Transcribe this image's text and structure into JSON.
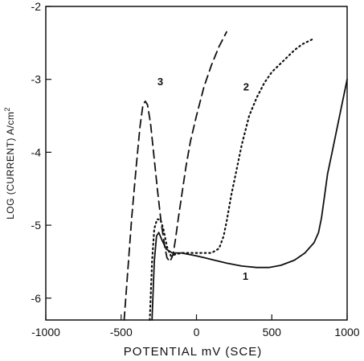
{
  "chart_data": {
    "type": "line",
    "xlabel": "POTENTIAL mV (SCE)",
    "ylabel": "LOG (CURRENT) A/cm",
    "ylabel_sup": "2",
    "xlim": [
      -1000,
      1000
    ],
    "ylim": [
      -6.3,
      -2
    ],
    "x_ticks": [
      -1000,
      -500,
      0,
      500,
      1000
    ],
    "x_tick_labels": [
      "-1000",
      "-500",
      "0",
      "500",
      "1000"
    ],
    "y_ticks": [
      -6,
      -5,
      -4,
      -3,
      -2
    ],
    "y_tick_labels": [
      "-6",
      "-5",
      "-4",
      "-3",
      "-2"
    ],
    "grid": false,
    "series": [
      {
        "label": "1",
        "style": "solid",
        "label_pos": [
          325,
          -5.75
        ],
        "points": [
          [
            -295,
            -6.3
          ],
          [
            -280,
            -5.5
          ],
          [
            -265,
            -5.15
          ],
          [
            -250,
            -5.1
          ],
          [
            -230,
            -5.2
          ],
          [
            -200,
            -5.33
          ],
          [
            -160,
            -5.38
          ],
          [
            -100,
            -5.38
          ],
          [
            0,
            -5.42
          ],
          [
            100,
            -5.47
          ],
          [
            200,
            -5.52
          ],
          [
            300,
            -5.56
          ],
          [
            400,
            -5.58
          ],
          [
            480,
            -5.58
          ],
          [
            560,
            -5.55
          ],
          [
            650,
            -5.48
          ],
          [
            720,
            -5.38
          ],
          [
            780,
            -5.24
          ],
          [
            810,
            -5.1
          ],
          [
            830,
            -4.9
          ],
          [
            850,
            -4.6
          ],
          [
            870,
            -4.3
          ],
          [
            900,
            -4.0
          ],
          [
            930,
            -3.7
          ],
          [
            960,
            -3.4
          ],
          [
            985,
            -3.15
          ],
          [
            1000,
            -3.0
          ]
        ]
      },
      {
        "label": "2",
        "style": "dotted",
        "label_pos": [
          330,
          -3.15
        ],
        "points": [
          [
            -310,
            -6.3
          ],
          [
            -295,
            -5.5
          ],
          [
            -280,
            -5.05
          ],
          [
            -262,
            -4.92
          ],
          [
            -240,
            -4.92
          ],
          [
            -220,
            -5.05
          ],
          [
            -195,
            -5.3
          ],
          [
            -170,
            -5.42
          ],
          [
            -140,
            -5.4
          ],
          [
            -100,
            -5.38
          ],
          [
            0,
            -5.38
          ],
          [
            100,
            -5.38
          ],
          [
            150,
            -5.32
          ],
          [
            180,
            -5.15
          ],
          [
            200,
            -4.95
          ],
          [
            230,
            -4.6
          ],
          [
            260,
            -4.3
          ],
          [
            300,
            -3.9
          ],
          [
            350,
            -3.5
          ],
          [
            400,
            -3.25
          ],
          [
            450,
            -3.05
          ],
          [
            500,
            -2.9
          ],
          [
            550,
            -2.8
          ],
          [
            600,
            -2.7
          ],
          [
            650,
            -2.6
          ],
          [
            700,
            -2.52
          ],
          [
            770,
            -2.45
          ]
        ]
      },
      {
        "label": "3",
        "style": "dashed",
        "label_pos": [
          -240,
          -3.08
        ],
        "points": [
          [
            -480,
            -6.3
          ],
          [
            -455,
            -5.6
          ],
          [
            -430,
            -4.9
          ],
          [
            -400,
            -4.2
          ],
          [
            -375,
            -3.65
          ],
          [
            -355,
            -3.35
          ],
          [
            -340,
            -3.3
          ],
          [
            -325,
            -3.35
          ],
          [
            -305,
            -3.6
          ],
          [
            -285,
            -4.0
          ],
          [
            -260,
            -4.5
          ],
          [
            -235,
            -4.95
          ],
          [
            -210,
            -5.3
          ],
          [
            -195,
            -5.45
          ],
          [
            -175,
            -5.5
          ],
          [
            -155,
            -5.4
          ],
          [
            -140,
            -5.2
          ],
          [
            -120,
            -4.9
          ],
          [
            -95,
            -4.55
          ],
          [
            -70,
            -4.2
          ],
          [
            -40,
            -3.85
          ],
          [
            0,
            -3.5
          ],
          [
            50,
            -3.1
          ],
          [
            100,
            -2.8
          ],
          [
            150,
            -2.55
          ],
          [
            200,
            -2.35
          ]
        ]
      }
    ]
  }
}
